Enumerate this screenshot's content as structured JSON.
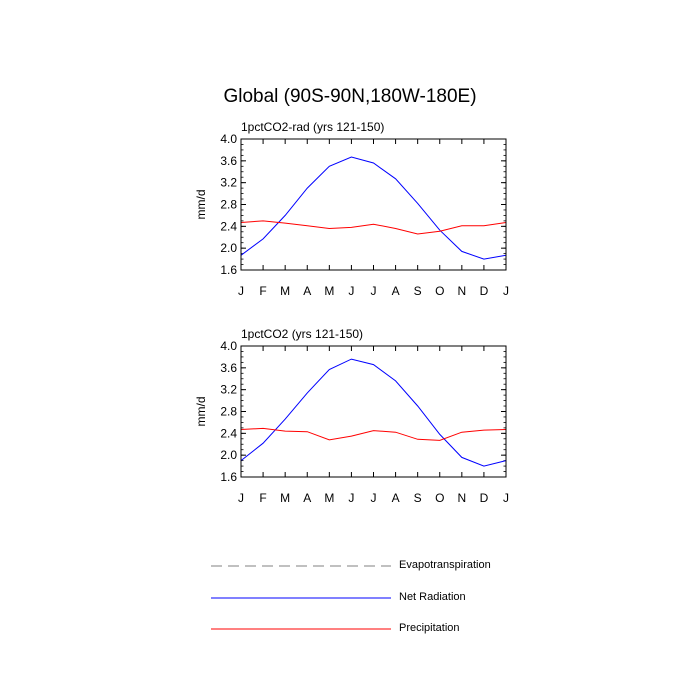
{
  "title": "Global (90S-90N,180W-180E)",
  "chart_data": [
    {
      "type": "line",
      "subtitle": "1pctCO2-rad (yrs 121-150)",
      "ylabel": "mm/d",
      "xlabel": "",
      "ylim": [
        1.6,
        4.0
      ],
      "yticks": [
        "1.6",
        "2.0",
        "2.4",
        "2.8",
        "3.2",
        "3.6",
        "4.0"
      ],
      "categories": [
        "J",
        "F",
        "M",
        "A",
        "M",
        "J",
        "J",
        "A",
        "S",
        "O",
        "N",
        "D",
        "J"
      ],
      "series": [
        {
          "name": "Net Radiation",
          "color": "#0000ff",
          "values": [
            1.87,
            2.17,
            2.6,
            3.1,
            3.5,
            3.67,
            3.56,
            3.27,
            2.82,
            2.33,
            1.94,
            1.8,
            1.87
          ]
        },
        {
          "name": "Precipitation",
          "color": "#ff0000",
          "values": [
            2.47,
            2.5,
            2.46,
            2.41,
            2.36,
            2.38,
            2.44,
            2.36,
            2.26,
            2.31,
            2.41,
            2.41,
            2.47
          ]
        }
      ]
    },
    {
      "type": "line",
      "subtitle": "1pctCO2 (yrs 121-150)",
      "ylabel": "mm/d",
      "xlabel": "",
      "ylim": [
        1.6,
        4.0
      ],
      "yticks": [
        "1.6",
        "2.0",
        "2.4",
        "2.8",
        "3.2",
        "3.6",
        "4.0"
      ],
      "categories": [
        "J",
        "F",
        "M",
        "A",
        "M",
        "J",
        "J",
        "A",
        "S",
        "O",
        "N",
        "D",
        "J"
      ],
      "series": [
        {
          "name": "Net Radiation",
          "color": "#0000ff",
          "values": [
            1.9,
            2.22,
            2.66,
            3.14,
            3.57,
            3.76,
            3.66,
            3.36,
            2.9,
            2.38,
            1.96,
            1.8,
            1.9
          ]
        },
        {
          "name": "Precipitation",
          "color": "#ff0000",
          "values": [
            2.47,
            2.49,
            2.44,
            2.43,
            2.28,
            2.35,
            2.45,
            2.42,
            2.29,
            2.27,
            2.42,
            2.46,
            2.47
          ]
        }
      ]
    }
  ],
  "legend": [
    {
      "label": "Evapotranspiration",
      "color": "#808080",
      "style": "dashed"
    },
    {
      "label": "Net Radiation",
      "color": "#0000ff",
      "style": "solid"
    },
    {
      "label": "Precipitation",
      "color": "#ff0000",
      "style": "solid"
    }
  ]
}
